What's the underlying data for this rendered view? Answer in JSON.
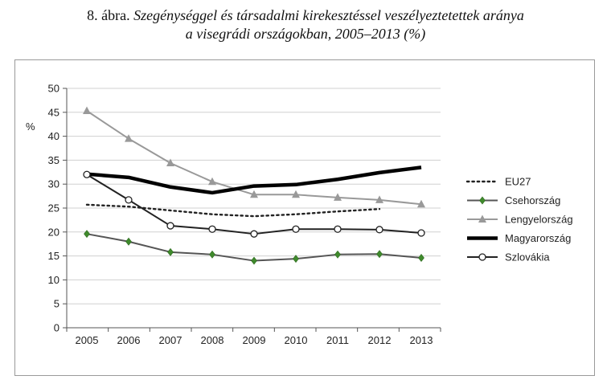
{
  "caption": {
    "number": "8. ábra.",
    "title_line1": "Szegénységgel és társadalmi kirekesztéssel veszélyeztetettek aránya",
    "title_line2": "a visegrádi országokban, 2005–2013 (%)"
  },
  "chart_data": {
    "type": "line",
    "ylabel": "%",
    "xlabel": "",
    "ylim": [
      0,
      50
    ],
    "yticks": [
      0,
      5,
      10,
      15,
      20,
      25,
      30,
      35,
      40,
      45,
      50
    ],
    "x": [
      "2005",
      "2006",
      "2007",
      "2008",
      "2009",
      "2010",
      "2011",
      "2012",
      "2013"
    ],
    "grid": "horizontal",
    "legend_position": "right",
    "series": [
      {
        "name": "EU27",
        "style": "dotted",
        "color": "#222222",
        "marker": "none",
        "values": [
          25.7,
          25.3,
          24.5,
          23.7,
          23.3,
          23.7,
          24.3,
          24.8,
          null
        ]
      },
      {
        "name": "Csehország",
        "style": "solid",
        "color": "#555555",
        "marker": "diamond-green",
        "values": [
          19.6,
          18.0,
          15.8,
          15.3,
          14.0,
          14.4,
          15.3,
          15.4,
          14.6
        ]
      },
      {
        "name": "Lengyelország",
        "style": "solid",
        "color": "#999999",
        "marker": "triangle",
        "values": [
          45.3,
          39.5,
          34.4,
          30.5,
          27.8,
          27.8,
          27.2,
          26.7,
          25.8
        ]
      },
      {
        "name": "Magyarország",
        "style": "thick",
        "color": "#000000",
        "marker": "none",
        "values": [
          32.1,
          31.4,
          29.4,
          28.2,
          29.6,
          29.9,
          31.0,
          32.4,
          33.5
        ]
      },
      {
        "name": "Szlovákia",
        "style": "solid",
        "color": "#222222",
        "marker": "circle",
        "values": [
          32.0,
          26.7,
          21.3,
          20.6,
          19.6,
          20.6,
          20.6,
          20.5,
          19.8
        ]
      }
    ]
  }
}
